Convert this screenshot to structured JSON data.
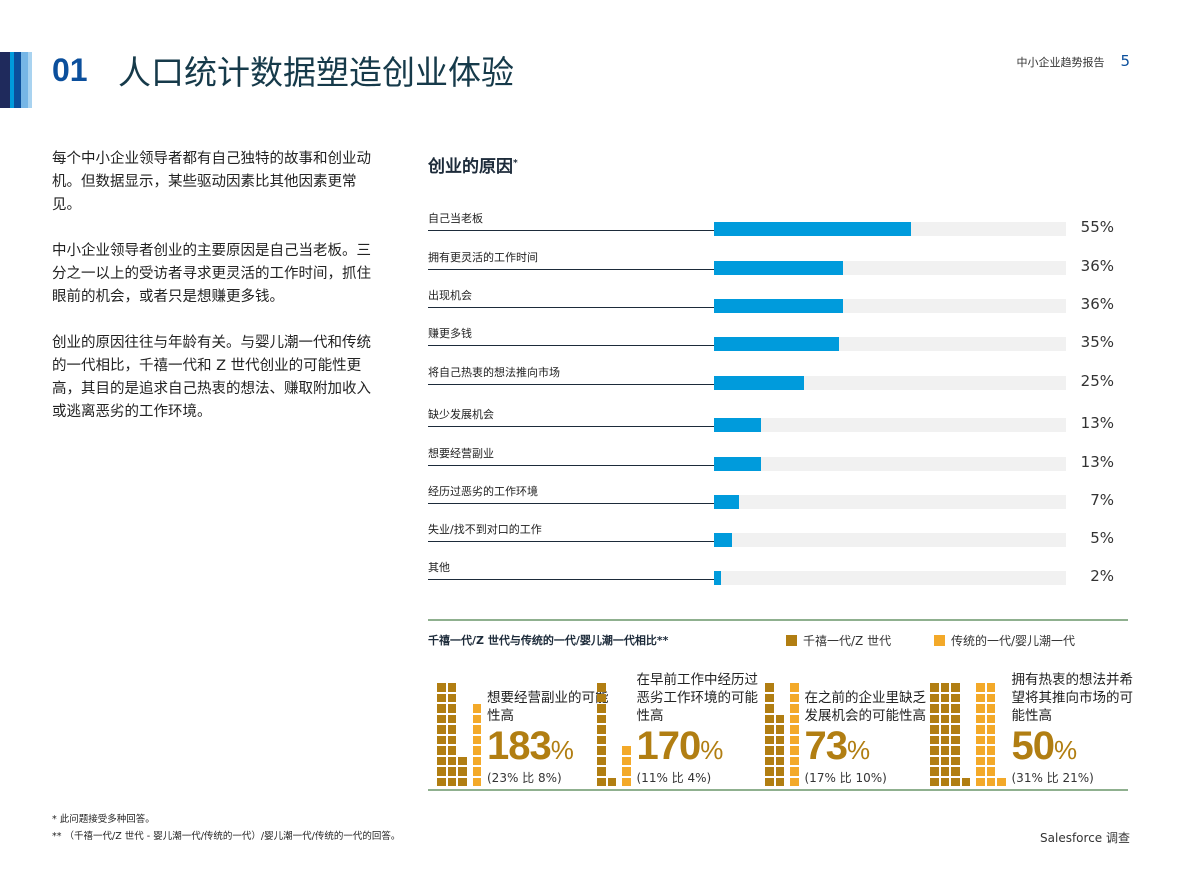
{
  "header": {
    "number": "01",
    "title": "人口统计数据塑造创业体验",
    "report": "中小企业趋势报告",
    "page": "5"
  },
  "intro": [
    "每个中小企业领导者都有自己独特的故事和创业动机。但数据显示，某些驱动因素比其他因素更常见。",
    "中小企业领导者创业的主要原因是自己当老板。三分之一以上的受访者寻求更灵活的工作时间，抓住眼前的机会，或者只是想赚更多钱。",
    "创业的原因往往与年龄有关。与婴儿潮一代和传统的一代相比，千禧一代和 Z 世代创业的可能性更高，其目的是追求自己热衷的想法、赚取附加收入或逃离恶劣的工作环境。"
  ],
  "chart_data": [
    {
      "type": "bar",
      "orientation": "horizontal",
      "title": "创业的原因",
      "title_mark": "*",
      "xlim": [
        0,
        100
      ],
      "color": "#009bdc",
      "categories": [
        "自己当老板",
        "拥有更灵活的工作时间",
        "出现机会",
        "赚更多钱",
        "将自己热衷的想法推向市场",
        "缺少发展机会",
        "想要经营副业",
        "经历过恶劣的工作环境",
        "失业/找不到对口的工作",
        "其他"
      ],
      "values": [
        55,
        36,
        36,
        35,
        25,
        13,
        13,
        7,
        5,
        2
      ],
      "labels": [
        "55%",
        "36%",
        "36%",
        "35%",
        "25%",
        "13%",
        "13%",
        "7%",
        "5%",
        "2%"
      ]
    },
    {
      "type": "waffle",
      "title": "千禧一代/Z 世代与传统的一代/婴儿潮一代相比**",
      "legend": [
        {
          "name": "千禧一代/Z 世代",
          "color": "#b17e12"
        },
        {
          "name": "传统的一代/婴儿潮一代",
          "color": "#f3a929"
        }
      ],
      "items": [
        {
          "text": "想要经营副业的可能性高",
          "big": "183",
          "unit": "%",
          "detail": "(23% 比 8%)",
          "young": 23,
          "old": 8
        },
        {
          "text": "在早前工作中经历过恶劣工作环境的可能性高",
          "big": "170",
          "unit": "%",
          "detail": "(11% 比 4%)",
          "young": 11,
          "old": 4
        },
        {
          "text": "在之前的企业里缺乏发展机会的可能性高",
          "big": "73",
          "unit": "%",
          "detail": "(17% 比 10%)",
          "young": 17,
          "old": 10
        },
        {
          "text": "拥有热衷的想法并希望将其推向市场的可能性高",
          "big": "50",
          "unit": "%",
          "detail": "(31% 比 21%)",
          "young": 31,
          "old": 21
        }
      ]
    }
  ],
  "footnotes": [
    "*   此问题接受多种回答。",
    "**   （千禧一代/Z 世代 - 婴儿潮一代/传统的一代）/婴儿潮一代/传统的一代的回答。"
  ],
  "source": "Salesforce 调查"
}
